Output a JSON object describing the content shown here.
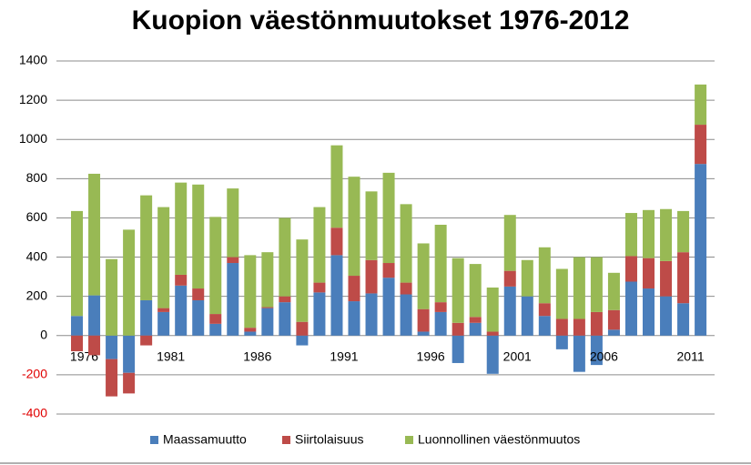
{
  "chart_data": {
    "type": "stacked_bar",
    "title": "Kuopion väestönmuutokset  1976-2012",
    "categories": [
      "1976",
      null,
      null,
      null,
      null,
      "1981",
      null,
      null,
      null,
      null,
      "1986",
      null,
      null,
      null,
      null,
      "1991",
      null,
      null,
      null,
      null,
      "1996",
      null,
      null,
      null,
      null,
      "2001",
      null,
      null,
      null,
      null,
      "2006",
      null,
      null,
      null,
      null,
      "2011",
      null
    ],
    "series": [
      {
        "name": "Maassamuutto",
        "color": "#4a7ebb",
        "values": [
          100,
          205,
          -120,
          -190,
          180,
          120,
          255,
          180,
          60,
          370,
          20,
          140,
          170,
          -50,
          220,
          410,
          175,
          215,
          295,
          210,
          20,
          120,
          -140,
          65,
          -195,
          250,
          200,
          100,
          -70,
          -185,
          -150,
          30,
          275,
          240,
          200,
          165,
          875
        ]
      },
      {
        "name": "Siirtolaisuus",
        "color": "#be4b48",
        "values": [
          -80,
          -100,
          -190,
          -105,
          -50,
          20,
          55,
          60,
          50,
          30,
          20,
          5,
          30,
          70,
          50,
          140,
          130,
          170,
          75,
          60,
          115,
          50,
          65,
          30,
          20,
          80,
          0,
          65,
          85,
          85,
          120,
          100,
          130,
          155,
          180,
          260,
          200
        ]
      },
      {
        "name": "Luonnollinen väestönmuutos",
        "color": "#98b954",
        "values": [
          535,
          620,
          390,
          540,
          535,
          515,
          470,
          530,
          495,
          350,
          370,
          280,
          400,
          420,
          385,
          420,
          505,
          350,
          460,
          400,
          335,
          395,
          330,
          270,
          225,
          285,
          185,
          285,
          255,
          315,
          280,
          190,
          220,
          245,
          265,
          210,
          205
        ]
      }
    ],
    "ylim": [
      -400,
      1400
    ],
    "yticks": [
      -400,
      -200,
      0,
      200,
      400,
      600,
      800,
      1000,
      1200,
      1400
    ],
    "grid": true
  }
}
